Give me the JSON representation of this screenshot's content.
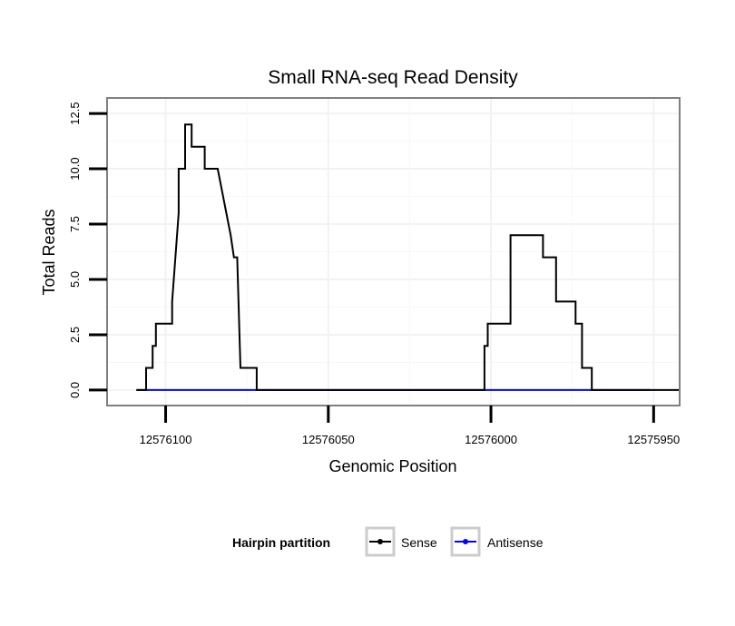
{
  "chart_data": {
    "type": "line",
    "title": "Small RNA-seq Read Density",
    "xlabel": "Genomic Position",
    "ylabel": "Total Reads",
    "xlim": [
      12576118,
      12575942
    ],
    "x_reversed": true,
    "ylim": [
      -0.7,
      13.2
    ],
    "xticks": [
      12576100,
      12576050,
      12576000,
      12575950
    ],
    "xtick_labels": [
      "12576100",
      "12576050",
      "12576000",
      "12575950"
    ],
    "yticks": [
      0,
      2.5,
      5,
      7.5,
      10,
      12.5
    ],
    "ytick_labels": [
      "0.0",
      "2.5",
      "5.0",
      "7.5",
      "10.0",
      "12.5"
    ],
    "grid": true,
    "legend": {
      "title": "Hairpin partition",
      "position": "bottom",
      "entries": [
        {
          "label": "Sense",
          "color": "#000000"
        },
        {
          "label": "Antisense",
          "color": "#0000ff"
        }
      ]
    },
    "series": [
      {
        "name": "Sense",
        "color": "#000000",
        "x": [
          12576109,
          12576106,
          12576106,
          12576104,
          12576104,
          12576103,
          12576103,
          12576102,
          12576102,
          12576098,
          12576098,
          12576097,
          12576097,
          12576096,
          12576096,
          12576094,
          12576094,
          12576092,
          12576092,
          12576088,
          12576088,
          12576084,
          12576084,
          12576080,
          12576079,
          12576078,
          12576077,
          12576072,
          12576072,
          12576002,
          12576002,
          12576001,
          12576001,
          12575994,
          12575994,
          12575984,
          12575984,
          12575980,
          12575980,
          12575974,
          12575974,
          12575972,
          12575972,
          12575969,
          12575969,
          12575942
        ],
        "y": [
          0,
          0,
          1,
          1,
          2,
          2,
          3,
          3,
          3,
          3,
          4,
          6,
          6,
          8,
          10,
          10,
          12,
          12,
          11,
          11,
          10,
          10,
          10,
          7,
          6,
          6,
          1,
          1,
          0,
          0,
          2,
          2,
          3,
          3,
          7,
          7,
          6,
          6,
          4,
          4,
          3,
          3,
          1,
          1,
          0,
          0
        ]
      },
      {
        "name": "Antisense",
        "color": "#0000ff",
        "x": [
          12576109,
          12575951
        ],
        "y": [
          0,
          0
        ]
      }
    ]
  }
}
